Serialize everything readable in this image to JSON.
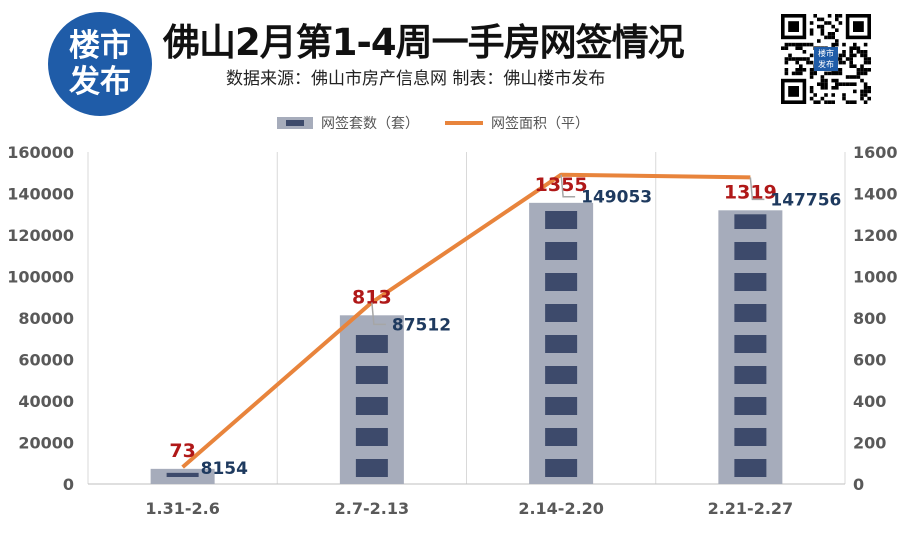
{
  "header": {
    "logo_line1": "楼市",
    "logo_line2": "发布",
    "title": "佛山2月第1-4周一手房网签情况",
    "subtitle": "数据来源：佛山市房产信息网  制表：佛山楼市发布",
    "qr_badge_line1": "楼市",
    "qr_badge_line2": "发布"
  },
  "colors": {
    "bar_light": "#a6acbb",
    "bar_dark": "#3d4a6b",
    "line": "#e8843c",
    "line_label": "#b01818",
    "bar_label": "#1e3a5f",
    "axis_text": "#595959",
    "grid": "#d9d9d9",
    "logo": "#1f5ca8"
  },
  "chart_data": {
    "type": "bar",
    "categories": [
      "1.31-2.6",
      "2.7-2.13",
      "2.14-2.20",
      "2.21-2.27"
    ],
    "series": [
      {
        "name": "网签套数（套）",
        "type": "bar",
        "axis": "right",
        "values": [
          73,
          813,
          1355,
          1319
        ]
      },
      {
        "name": "网签面积（平）",
        "type": "line",
        "axis": "left",
        "values": [
          8154,
          87512,
          149053,
          147756
        ]
      }
    ],
    "y_left": {
      "min": 0,
      "max": 160000,
      "ticks": [
        0,
        20000,
        40000,
        60000,
        80000,
        100000,
        120000,
        140000,
        160000
      ]
    },
    "y_right": {
      "min": 0,
      "max": 1600,
      "ticks": [
        0,
        200,
        400,
        600,
        800,
        1000,
        1200,
        1400,
        1600
      ]
    },
    "legend": {
      "position": "top"
    },
    "grid": "vertical"
  }
}
